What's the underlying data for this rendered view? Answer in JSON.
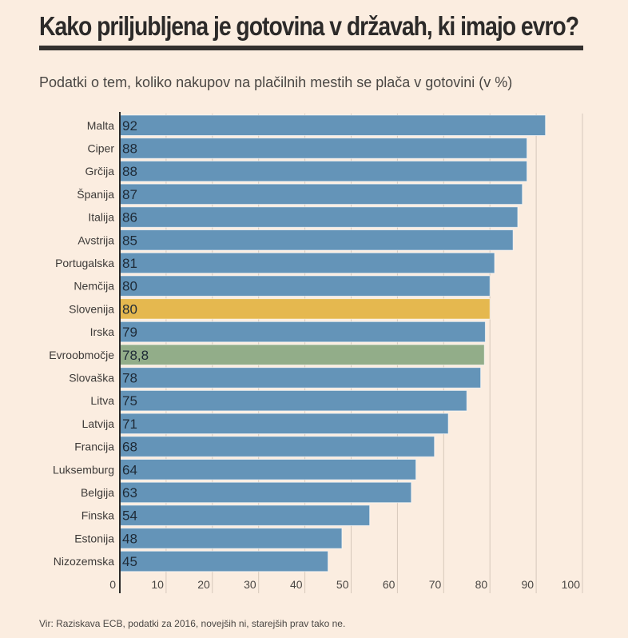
{
  "title": "Kako priljubljena je gotovina v državah, ki imajo evro?",
  "subtitle": "Podatki o tem, koliko nakupov na plačilnih mestih se plača v gotovini (v %)",
  "footer": "Vir: Raziskava ECB, podatki za 2016, novejših ni, starejših prav tako ne.",
  "colors": {
    "default": "#6494b8",
    "highlight": "#e5b84f",
    "average": "#92ad89",
    "background": "#fbede0"
  },
  "chart_data": {
    "type": "bar",
    "orientation": "horizontal",
    "title": "Kako priljubljena je gotovina v državah, ki imajo evro?",
    "subtitle": "Podatki o tem, koliko nakupov na plačilnih mestih se plača v gotovini (v %)",
    "xlabel": "",
    "ylabel": "",
    "xlim": [
      0,
      100
    ],
    "xticks": [
      0,
      10,
      20,
      30,
      40,
      50,
      60,
      70,
      80,
      90,
      100
    ],
    "grid": true,
    "categories": [
      "Malta",
      "Ciper",
      "Grčija",
      "Španija",
      "Italija",
      "Avstrija",
      "Portugalska",
      "Nemčija",
      "Slovenija",
      "Irska",
      "Evroobmočje",
      "Slovaška",
      "Litva",
      "Latvija",
      "Francija",
      "Luksemburg",
      "Belgija",
      "Finska",
      "Estonija",
      "Nizozemska"
    ],
    "values": [
      92,
      88,
      88,
      87,
      86,
      85,
      81,
      80,
      80,
      79,
      78.8,
      78,
      75,
      71,
      68,
      64,
      63,
      54,
      48,
      45
    ],
    "value_labels": [
      "92",
      "88",
      "88",
      "87",
      "86",
      "85",
      "81",
      "80",
      "80",
      "79",
      "78,8",
      "78",
      "75",
      "71",
      "68",
      "64",
      "63",
      "54",
      "48",
      "45"
    ],
    "highlight": {
      "Slovenija": "highlight",
      "Evroobmočje": "average"
    }
  }
}
